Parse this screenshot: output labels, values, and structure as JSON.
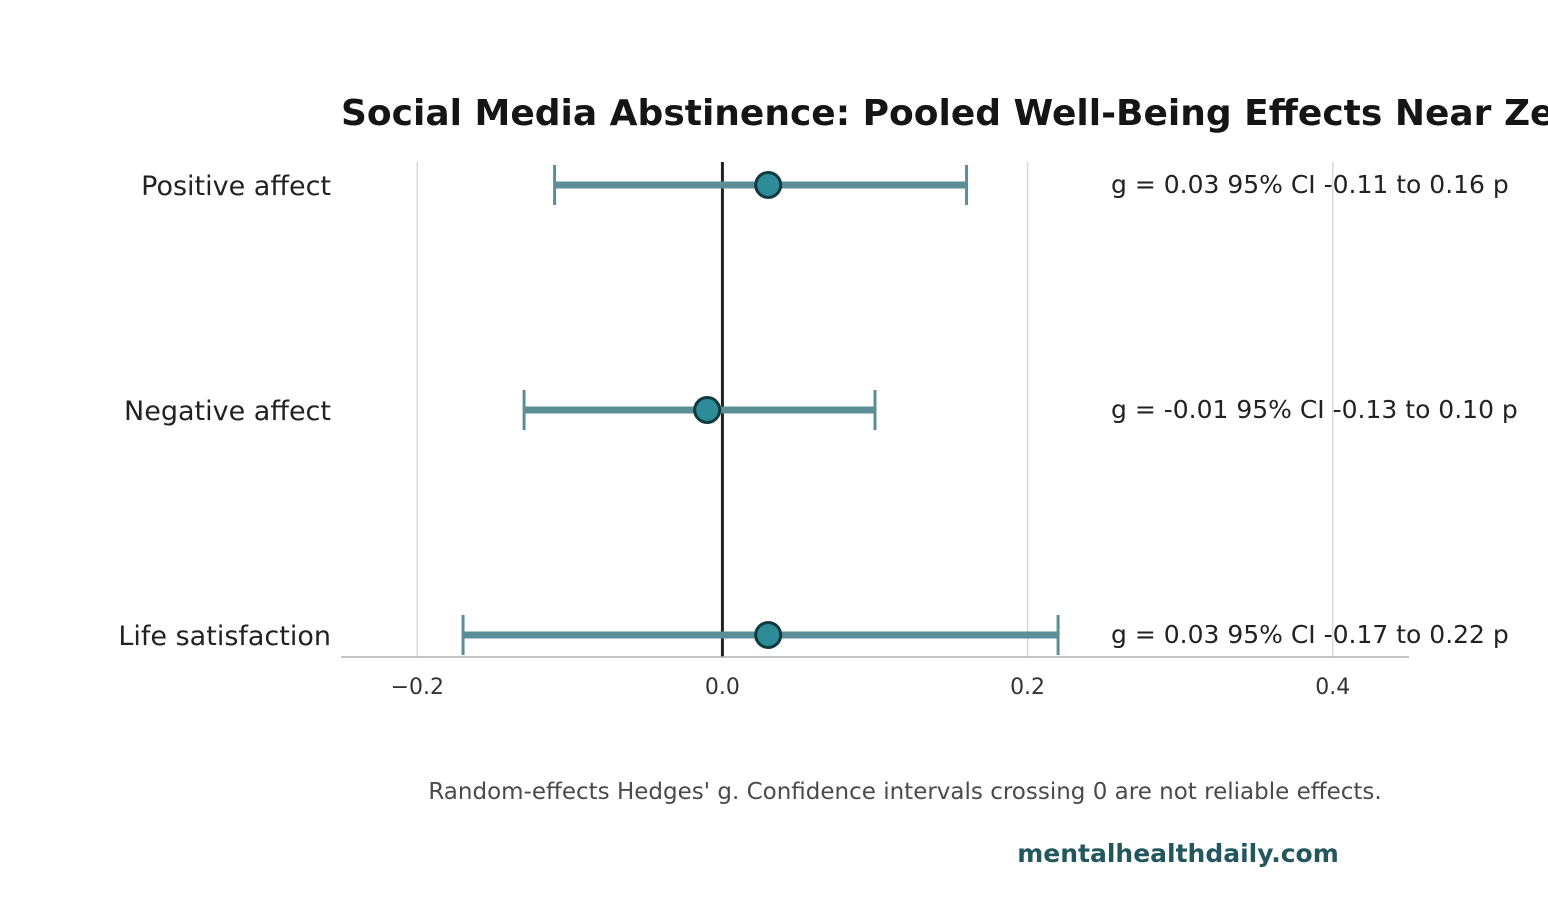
{
  "chart_data": {
    "type": "scatter",
    "title": "Social Media Abstinence: Pooled Well-Being Effects Near Zero",
    "xlabel": "",
    "ylabel": "",
    "xlim": [
      -0.25,
      0.45
    ],
    "x_ticks": [
      -0.2,
      0.0,
      0.2,
      0.4
    ],
    "x_tick_labels": [
      "−0.2",
      "0.0",
      "0.2",
      "0.4"
    ],
    "reference_line_x": 0,
    "grid": "vertical",
    "legend": "none",
    "categories": [
      "Positive affect",
      "Negative affect",
      "Life satisfaction"
    ],
    "points": [
      {
        "label": "Positive affect",
        "g": 0.03,
        "ci_low": -0.11,
        "ci_high": 0.16,
        "annotation": "g = 0.03  95% CI -0.11 to 0.16  p"
      },
      {
        "label": "Negative affect",
        "g": -0.01,
        "ci_low": -0.13,
        "ci_high": 0.1,
        "annotation": "g = -0.01  95% CI -0.13 to 0.10  p"
      },
      {
        "label": "Life satisfaction",
        "g": 0.03,
        "ci_low": -0.17,
        "ci_high": 0.22,
        "annotation": "g = 0.03  95% CI -0.17 to 0.22  p"
      }
    ],
    "note": "Random-effects Hedges' g. Confidence intervals crossing 0 are not reliable effects.",
    "source": "mentalhealthdaily.com"
  },
  "colors": {
    "point_fill": "#2e8b98",
    "point_edge": "#0f3a3f",
    "ci_line": "#5b8e96",
    "grid": "#d9d9d9",
    "zero_line": "#222222",
    "axis": "#b0b0b0",
    "brand": "#23575e"
  }
}
